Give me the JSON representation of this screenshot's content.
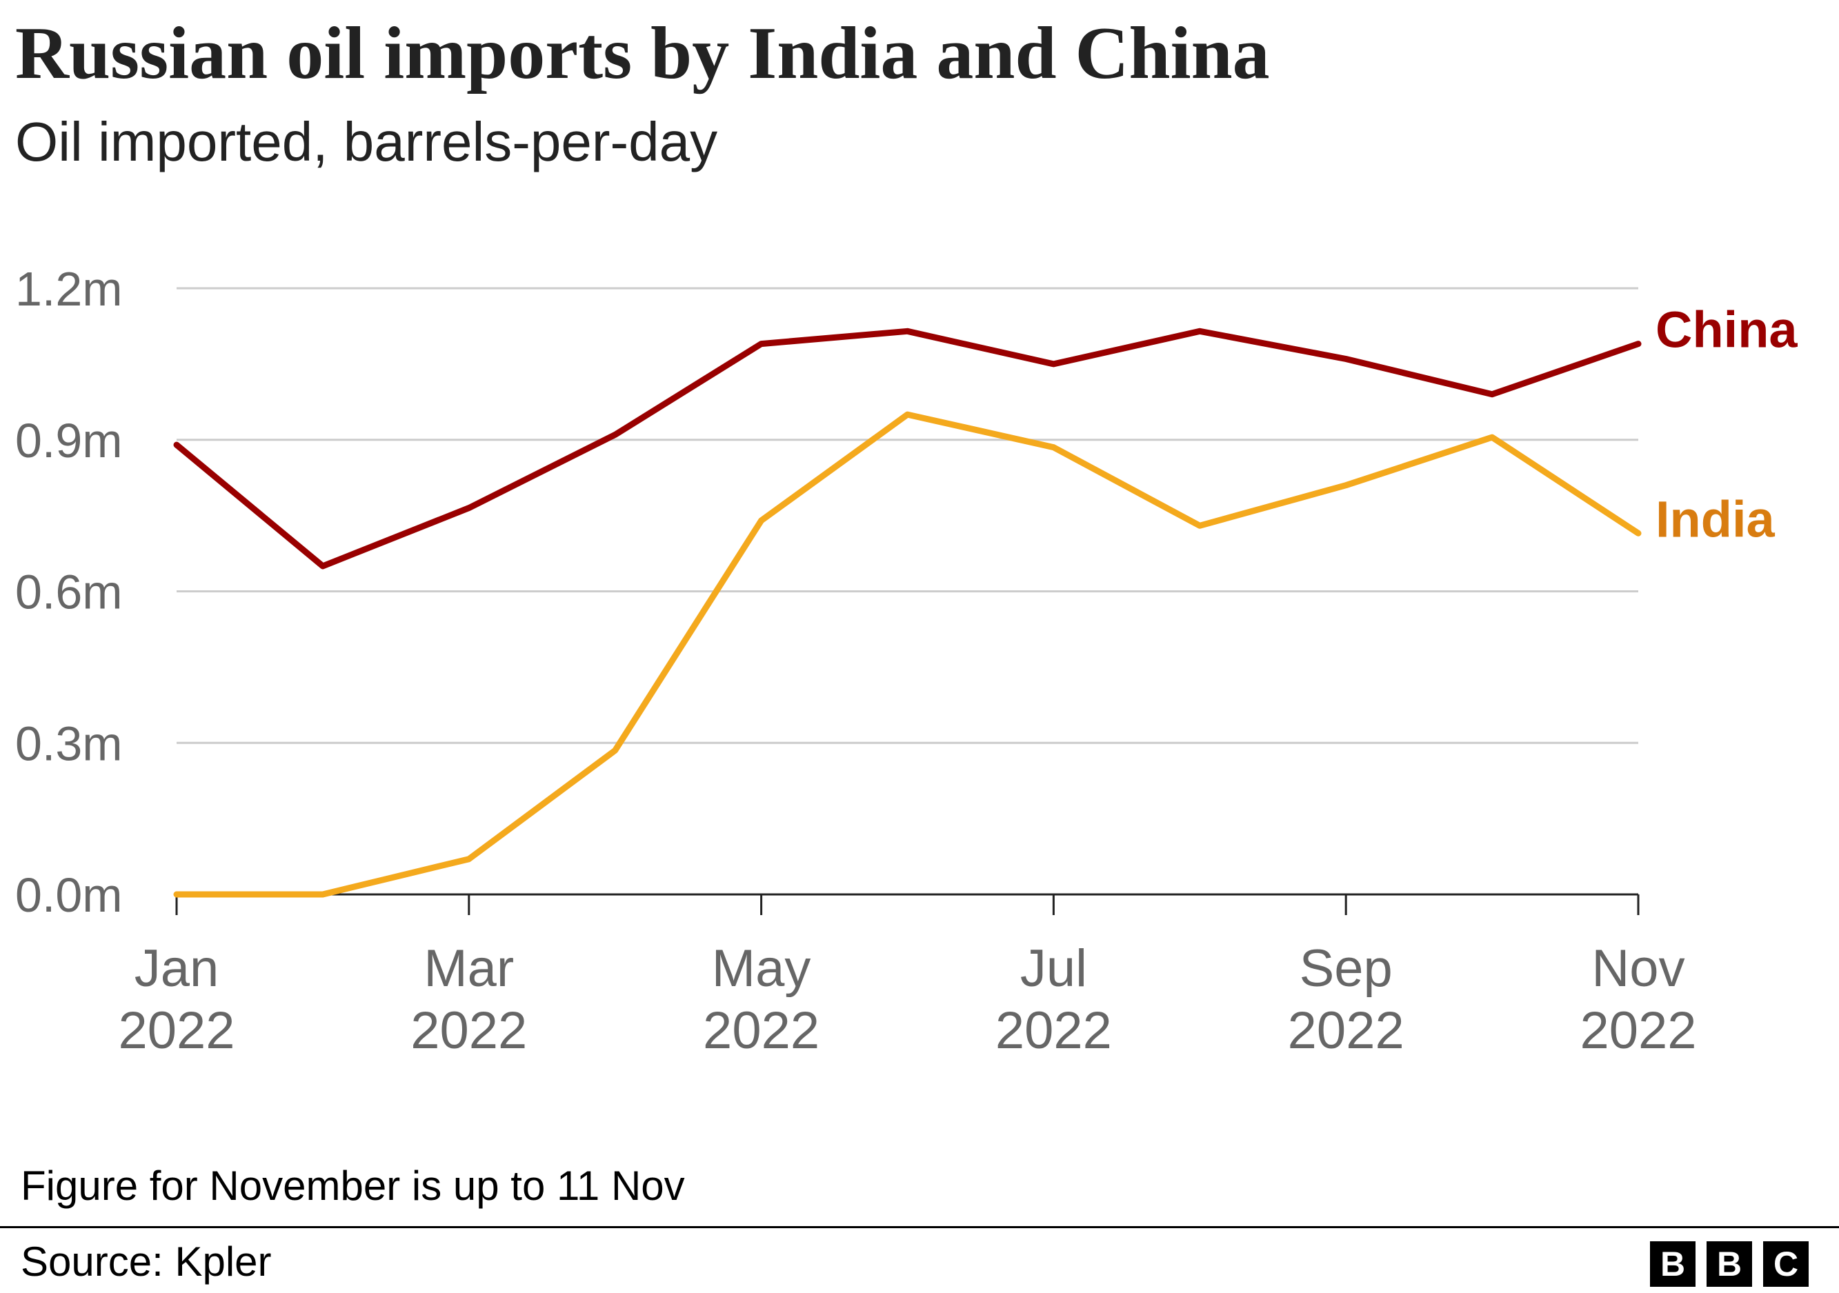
{
  "header": {
    "title": "Russian oil imports by India and China",
    "subtitle": "Oil imported, barrels-per-day"
  },
  "footer": {
    "note": "Figure for November is up to 11 Nov",
    "source": "Source: Kpler",
    "logo_letters": [
      "B",
      "B",
      "C"
    ]
  },
  "chart_data": {
    "type": "line",
    "title": "Russian oil imports by India and China",
    "subtitle": "Oil imported, barrels-per-day",
    "x": [
      "Jan 2022",
      "Feb 2022",
      "Mar 2022",
      "Apr 2022",
      "May 2022",
      "Jun 2022",
      "Jul 2022",
      "Aug 2022",
      "Sep 2022",
      "Oct 2022",
      "Nov 2022"
    ],
    "x_ticks": [
      {
        "line1": "Jan",
        "line2": "2022",
        "index": 0
      },
      {
        "line1": "Mar",
        "line2": "2022",
        "index": 2
      },
      {
        "line1": "May",
        "line2": "2022",
        "index": 4
      },
      {
        "line1": "Jul",
        "line2": "2022",
        "index": 6
      },
      {
        "line1": "Sep",
        "line2": "2022",
        "index": 8
      },
      {
        "line1": "Nov",
        "line2": "2022",
        "index": 10
      }
    ],
    "y_ticks": [
      {
        "value": 0,
        "label": "0.0m"
      },
      {
        "value": 0.3,
        "label": "0.3m"
      },
      {
        "value": 0.6,
        "label": "0.6m"
      },
      {
        "value": 0.9,
        "label": "0.9m"
      },
      {
        "value": 1.2,
        "label": "1.2m"
      }
    ],
    "ylim": [
      0,
      1.2
    ],
    "y_unit": "million barrels per day",
    "grid": true,
    "legend": "direct labels at line ends",
    "series": [
      {
        "name": "China",
        "color": "#990000",
        "label_color": "#990000",
        "values": [
          0.89,
          0.65,
          0.765,
          0.91,
          1.09,
          1.115,
          1.05,
          1.115,
          1.06,
          0.99,
          1.09
        ]
      },
      {
        "name": "India",
        "color": "#f4a91d",
        "label_color": "#d87c10",
        "values": [
          0.0,
          0.0,
          0.07,
          0.285,
          0.74,
          0.95,
          0.885,
          0.73,
          0.81,
          0.905,
          0.715
        ]
      }
    ]
  }
}
